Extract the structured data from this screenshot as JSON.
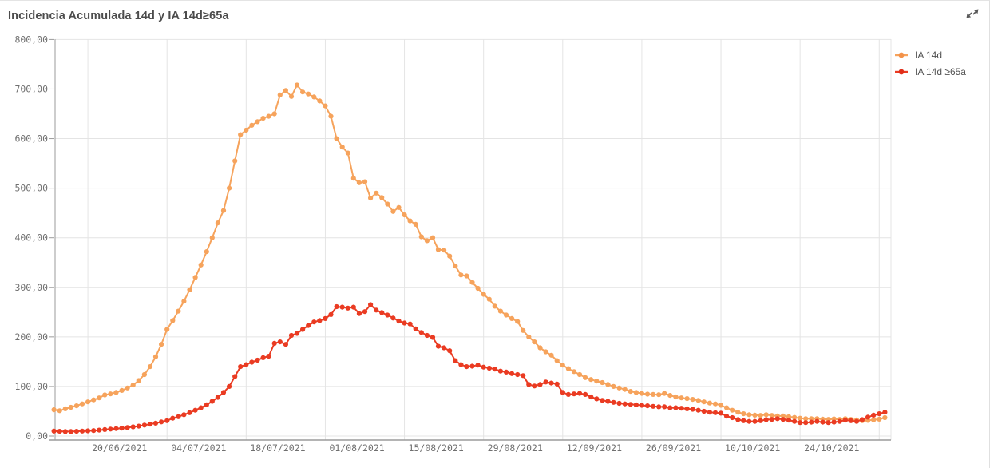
{
  "title": "Incidencia Acumulada 14d y IA 14d≥65a",
  "expand_icon": "expand-arrows-icon",
  "colors": {
    "series_orange": "#f6a35c",
    "series_red": "#ea3b22",
    "grid": "#e4e4e4",
    "axis": "#9b9b9b",
    "tick_text": "#707070",
    "title_text": "#4c4c4c",
    "legend_text": "#545454"
  },
  "chart_data": {
    "type": "line",
    "title": "Incidencia Acumulada 14d y IA 14d≥65a",
    "grid": true,
    "legend_position": "top-right",
    "point_markers": true,
    "x_axis": {
      "start_date": "14/06/2021",
      "end_date": "08/11/2021",
      "points": 148,
      "ticks": [
        {
          "index": 6,
          "label": "20/06/2021"
        },
        {
          "index": 20,
          "label": "04/07/2021"
        },
        {
          "index": 34,
          "label": "18/07/2021"
        },
        {
          "index": 48,
          "label": "01/08/2021"
        },
        {
          "index": 62,
          "label": "15/08/2021"
        },
        {
          "index": 76,
          "label": "29/08/2021"
        },
        {
          "index": 90,
          "label": "12/09/2021"
        },
        {
          "index": 104,
          "label": "26/09/2021"
        },
        {
          "index": 118,
          "label": "10/10/2021"
        },
        {
          "index": 132,
          "label": "24/10/2021"
        },
        {
          "index": 146,
          "label": ""
        }
      ]
    },
    "y_axis": {
      "min": 0,
      "max": 800,
      "step": 100,
      "labels": [
        "0,00",
        "100,00",
        "200,00",
        "300,00",
        "400,00",
        "500,00",
        "600,00",
        "700,00",
        "800,00"
      ]
    },
    "series": [
      {
        "name": "IA 14d",
        "color": "#f6a35c",
        "values": [
          53,
          51,
          55,
          58,
          61,
          65,
          69,
          73,
          77,
          83,
          85,
          88,
          92,
          97,
          103,
          112,
          124,
          140,
          160,
          185,
          215,
          233,
          252,
          272,
          295,
          320,
          345,
          372,
          400,
          430,
          455,
          500,
          555,
          608,
          617,
          627,
          634,
          641,
          645,
          650,
          688,
          697,
          685,
          708,
          694,
          690,
          684,
          676,
          666,
          645,
          600,
          583,
          571,
          520,
          511,
          513,
          480,
          490,
          481,
          468,
          453,
          461,
          446,
          434,
          427,
          402,
          394,
          400,
          376,
          375,
          363,
          343,
          325,
          323,
          310,
          298,
          286,
          276,
          262,
          252,
          244,
          237,
          231,
          213,
          200,
          190,
          178,
          170,
          163,
          152,
          143,
          136,
          130,
          124,
          118,
          114,
          111,
          108,
          104,
          100,
          97,
          94,
          90,
          88,
          86,
          84.5,
          84,
          83.5,
          86,
          82,
          79,
          77,
          75.5,
          74,
          72,
          69,
          66.5,
          65,
          62,
          57,
          52,
          48,
          45,
          43,
          42,
          41.5,
          43,
          41.5,
          40.5,
          40.5,
          39,
          37.5,
          36,
          35,
          35,
          35,
          34,
          33.5,
          34.5,
          33.5,
          35,
          33.5,
          32.5,
          31,
          31.5,
          32.5,
          34,
          37
        ]
      },
      {
        "name": "IA 14d ≥65a",
        "color": "#ea3b22",
        "values": [
          10,
          9.5,
          9,
          9,
          9.5,
          10,
          10.5,
          11,
          12,
          13,
          14,
          15,
          16,
          17,
          18.5,
          20,
          22,
          24,
          26,
          28.5,
          31,
          36,
          39,
          43,
          47,
          52,
          57,
          63,
          70,
          78,
          88,
          100,
          120,
          140,
          144,
          149,
          153,
          158,
          161,
          187,
          190,
          185,
          203,
          207,
          215,
          223,
          230,
          233,
          237,
          245,
          261,
          260,
          258,
          260,
          247,
          251,
          265,
          254,
          249,
          244,
          238,
          232,
          228,
          226,
          216,
          209,
          203,
          199,
          181,
          178,
          172,
          152,
          144,
          140,
          141,
          143,
          139,
          137,
          135,
          131,
          129,
          126,
          124,
          122,
          104,
          101,
          104,
          109,
          107,
          105,
          88,
          84,
          85,
          86,
          84,
          79,
          75,
          72,
          70,
          68,
          66,
          65,
          64,
          63,
          62,
          61,
          60,
          59,
          59,
          57,
          57,
          56,
          55,
          54,
          52,
          50,
          48,
          47,
          46,
          40,
          37,
          33,
          31,
          29.5,
          29.5,
          31,
          33,
          33.5,
          35,
          33.5,
          32,
          29.5,
          27,
          27,
          28,
          29.5,
          28,
          27,
          28,
          29.5,
          32,
          31,
          29.5,
          33,
          38,
          42,
          45,
          48
        ]
      }
    ]
  }
}
